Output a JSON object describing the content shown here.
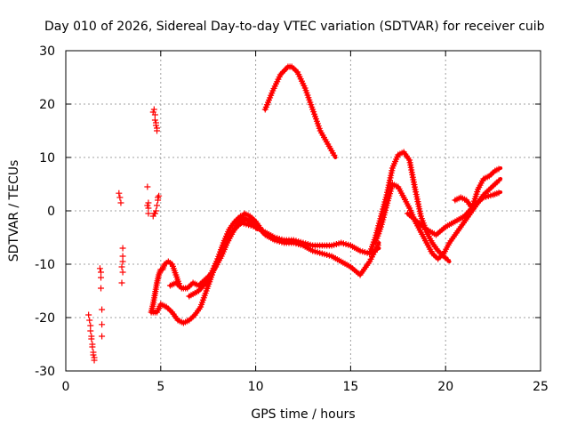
{
  "chart_data": {
    "type": "scatter",
    "title": "Day 010 of 2026, Sidereal Day-to-day VTEC variation (SDTVAR) for receiver cuib",
    "xlabel": "GPS time / hours",
    "ylabel": "SDTVAR / TECUs",
    "xlim": [
      0,
      25
    ],
    "ylim": [
      -30,
      30
    ],
    "xticks": [
      0,
      5,
      10,
      15,
      20,
      25
    ],
    "yticks": [
      -30,
      -20,
      -10,
      0,
      10,
      20,
      30
    ],
    "grid": true,
    "marker": "plus",
    "color": "#ff0000",
    "series": [
      {
        "name": "segment-a",
        "style": "points",
        "x": [
          1.2,
          1.25,
          1.3,
          1.3,
          1.35,
          1.35,
          1.4,
          1.4,
          1.45,
          1.45,
          1.5,
          1.5
        ],
        "y": [
          -19.5,
          -20.5,
          -21.5,
          -22.5,
          -23.5,
          -24,
          -25,
          -25.5,
          -26.5,
          -27,
          -27.5,
          -28
        ]
      },
      {
        "name": "segment-b",
        "style": "points",
        "x": [
          1.8,
          1.85,
          1.85,
          1.85,
          1.9,
          1.9,
          1.9
        ],
        "y": [
          -10.8,
          -11.5,
          -12.5,
          -14.5,
          -18.5,
          -21.3,
          -23.5
        ]
      },
      {
        "name": "segment-c",
        "style": "points",
        "x": [
          2.8,
          2.85,
          2.9
        ],
        "y": [
          3.3,
          2.5,
          1.5
        ]
      },
      {
        "name": "segment-d",
        "style": "points",
        "x": [
          3.0,
          3.0,
          3.0,
          2.95,
          3.0,
          2.95
        ],
        "y": [
          -7,
          -8.5,
          -9.5,
          -10.5,
          -11.5,
          -13.5
        ]
      },
      {
        "name": "segment-e",
        "style": "points",
        "x": [
          4.3,
          4.35,
          4.35,
          4.3,
          4.35
        ],
        "y": [
          4.5,
          1.5,
          0.5,
          1.0,
          -0.5
        ]
      },
      {
        "name": "segment-f",
        "style": "points",
        "x": [
          4.6,
          4.65,
          4.7,
          4.7,
          4.75,
          4.75,
          4.8,
          4.8
        ],
        "y": [
          18.5,
          19,
          18,
          17,
          16.5,
          16,
          15.5,
          15
        ]
      },
      {
        "name": "segment-g",
        "style": "points",
        "x": [
          4.6,
          4.65,
          4.7,
          4.75,
          4.8,
          4.85,
          4.85,
          4.9
        ],
        "y": [
          -1.0,
          -0.5,
          -0.5,
          0,
          1,
          2,
          2.5,
          2.8
        ]
      },
      {
        "name": "segment-h",
        "style": "line",
        "x": [
          4.5,
          4.6,
          4.7,
          4.8,
          4.9,
          5.0,
          5.1,
          5.2,
          5.4,
          5.6,
          5.8,
          6.0
        ],
        "y": [
          -19,
          -17.5,
          -15.5,
          -13.5,
          -12,
          -11,
          -11,
          -10,
          -9.5,
          -10,
          -12,
          -14
        ]
      },
      {
        "name": "segment-i",
        "style": "line",
        "x": [
          4.6,
          4.8,
          5.0,
          5.3,
          5.6,
          5.9,
          6.2,
          6.5,
          6.8,
          7.1,
          7.4,
          7.7,
          8.0,
          8.3,
          8.6,
          8.9,
          9.2,
          9.5,
          9.8,
          10.1
        ],
        "y": [
          -19,
          -19,
          -17.5,
          -18,
          -19,
          -20.5,
          -21,
          -20.5,
          -19.5,
          -18,
          -15,
          -12,
          -9,
          -6,
          -3.5,
          -2,
          -1,
          -1.5,
          -2.5,
          -3.5
        ]
      },
      {
        "name": "segment-j",
        "style": "line",
        "x": [
          5.5,
          5.8,
          6.1,
          6.4,
          6.7,
          7.0,
          7.3,
          7.6,
          7.9,
          8.2,
          8.5,
          8.8,
          9.1,
          9.4,
          9.7,
          10.0,
          10.3
        ],
        "y": [
          -14,
          -13.5,
          -14.5,
          -14.5,
          -13.5,
          -14,
          -13,
          -12,
          -10.5,
          -8.5,
          -6,
          -4,
          -2,
          -0.5,
          -1,
          -2,
          -3.5
        ]
      },
      {
        "name": "segment-k",
        "style": "line",
        "x": [
          6.5,
          7.0,
          7.5,
          8.0,
          8.5,
          9.0,
          9.5,
          10.0,
          10.5,
          11.0,
          11.5,
          12.0,
          12.5,
          13.0,
          13.5,
          14.0,
          14.5,
          15.0,
          15.5,
          16.0,
          16.5
        ],
        "y": [
          -16,
          -15,
          -13,
          -9,
          -5,
          -3,
          -1.5,
          -2.5,
          -4.5,
          -5.5,
          -6,
          -6,
          -6.5,
          -7.5,
          -8,
          -8.5,
          -9.5,
          -10.5,
          -12,
          -9.5,
          -6
        ]
      },
      {
        "name": "segment-l",
        "style": "line",
        "x": [
          9.0,
          9.5,
          10.0,
          10.5,
          11.0,
          11.5,
          12.0,
          12.5,
          13.0,
          13.5,
          14.0,
          14.5,
          15.0,
          15.5,
          16.0,
          16.5
        ],
        "y": [
          -2,
          -2.5,
          -3,
          -4,
          -5,
          -5.5,
          -5.5,
          -6,
          -6.5,
          -6.5,
          -6.5,
          -6,
          -6.5,
          -7.5,
          -8,
          -7
        ]
      },
      {
        "name": "segment-m",
        "style": "line",
        "x": [
          10.5,
          10.9,
          11.3,
          11.7,
          11.9,
          12.2,
          12.6,
          13.0,
          13.4,
          13.8,
          14.2
        ],
        "y": [
          19,
          22.5,
          25.5,
          27,
          27,
          26,
          23,
          19,
          15,
          12.5,
          10
        ]
      },
      {
        "name": "segment-n",
        "style": "line",
        "x": [
          16.0,
          16.3,
          16.6,
          16.9,
          17.2,
          17.5,
          17.8,
          18.1,
          18.4,
          18.7,
          19.0,
          19.3,
          19.6,
          19.9,
          20.2
        ],
        "y": [
          -8,
          -5,
          -1,
          3,
          8,
          10.5,
          11,
          9.5,
          4,
          -1,
          -4,
          -6,
          -7.5,
          -8.5,
          -9.5
        ]
      },
      {
        "name": "segment-o",
        "style": "line",
        "x": [
          16.3,
          16.6,
          16.9,
          17.2,
          17.5,
          17.8,
          18.1,
          18.4,
          18.7,
          19.0,
          19.3,
          19.6,
          19.9,
          20.2,
          20.5,
          20.8,
          21.1,
          21.4,
          21.7,
          22.0,
          22.3,
          22.6,
          22.9
        ],
        "y": [
          -6,
          -3,
          1,
          5,
          4.5,
          2.5,
          0.5,
          -2,
          -4,
          -6,
          -8,
          -9,
          -8,
          -6,
          -4.5,
          -3,
          -1.5,
          0,
          1.5,
          3,
          4,
          5,
          6
        ]
      },
      {
        "name": "segment-p",
        "style": "line",
        "x": [
          18.0,
          18.5,
          19.0,
          19.5,
          20.0,
          20.5,
          21.0,
          21.5,
          22.0,
          22.5,
          22.9
        ],
        "y": [
          -0.5,
          -2,
          -3.5,
          -4.5,
          -3,
          -2,
          -1,
          1,
          2.5,
          3,
          3.5
        ]
      },
      {
        "name": "segment-q",
        "style": "line",
        "x": [
          20.5,
          20.8,
          21.1,
          21.4,
          21.7,
          22.0,
          22.3,
          22.6,
          22.9
        ],
        "y": [
          2,
          2.5,
          2,
          0.5,
          4,
          6,
          6.5,
          7.5,
          8
        ]
      }
    ]
  }
}
